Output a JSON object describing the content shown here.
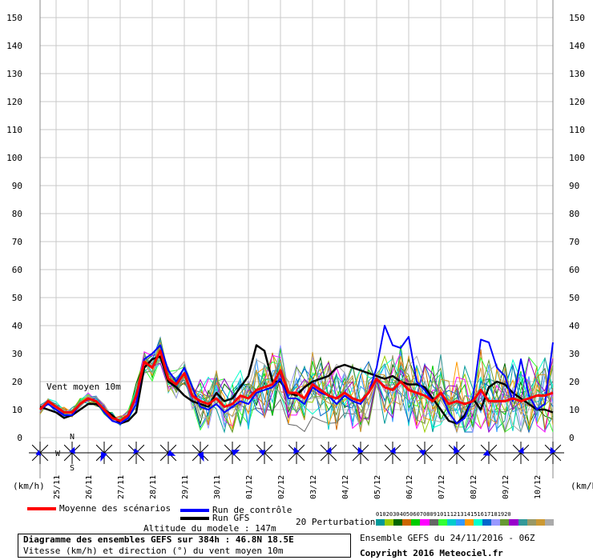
{
  "chart_data": {
    "type": "line",
    "y_ticks": [
      "150",
      "140",
      "130",
      "120",
      "110",
      "100",
      "90",
      "80",
      "70",
      "60",
      "50",
      "40",
      "30",
      "20",
      "10",
      "0"
    ],
    "ylim": [
      0,
      150
    ],
    "unit_left": "(km/h)",
    "unit_right": "(km/h)",
    "x_dates": [
      "25/11",
      "26/11",
      "27/11",
      "28/11",
      "29/11",
      "30/11",
      "01/12",
      "02/12",
      "03/12",
      "04/12",
      "05/12",
      "06/12",
      "07/12",
      "08/12",
      "09/12",
      "10/12"
    ],
    "x_axis_note": "Values sampled every 6h from 24/11 12Z (index 0) to 10/12 (index 64)",
    "series_label_inline": "Vent moyen 10m",
    "mean": {
      "name": "Moyenne des scénarios",
      "color": "#ff0000",
      "values": [
        10,
        13,
        11,
        9,
        9,
        12,
        14,
        13,
        10,
        7,
        6,
        8,
        15,
        27,
        25,
        31,
        21,
        19,
        23,
        15,
        13,
        12,
        14,
        11,
        12,
        15,
        14,
        17,
        18,
        19,
        24,
        16,
        16,
        14,
        19,
        17,
        15,
        14,
        16,
        14,
        13,
        16,
        21,
        18,
        17,
        20,
        17,
        16,
        15,
        13,
        16,
        12,
        13,
        12,
        13,
        17,
        13,
        13,
        13,
        14,
        13,
        14,
        15,
        15,
        16
      ]
    },
    "control": {
      "name": "Run de contrôle",
      "color": "#0000ff",
      "values": [
        10,
        12,
        10,
        8,
        8,
        12,
        14,
        13,
        9,
        6,
        5,
        7,
        12,
        28,
        30,
        33,
        24,
        20,
        25,
        18,
        11,
        10,
        12,
        9,
        11,
        13,
        12,
        16,
        17,
        18,
        21,
        14,
        14,
        12,
        18,
        16,
        15,
        12,
        15,
        13,
        12,
        16,
        25,
        40,
        33,
        32,
        36,
        20,
        17,
        13,
        16,
        9,
        5,
        7,
        14,
        35,
        34,
        25,
        22,
        13,
        28,
        15,
        10,
        12,
        34
      ]
    },
    "gfs": {
      "name": "Run GFS",
      "color": "#000000",
      "values": [
        11,
        10,
        9,
        7,
        8,
        10,
        12,
        12,
        10,
        8,
        5,
        6,
        9,
        25,
        28,
        29,
        20,
        18,
        15,
        13,
        12,
        11,
        16,
        13,
        14,
        18,
        22,
        33,
        31,
        20,
        20,
        16,
        15,
        18,
        20,
        21,
        22,
        25,
        26,
        25,
        24,
        23,
        22,
        21,
        22,
        20,
        19,
        19,
        18,
        14,
        10,
        6,
        5,
        8,
        14,
        10,
        18,
        20,
        19,
        16,
        14,
        12,
        10,
        10,
        9
      ]
    },
    "perturbations": {
      "name": "20 Perturbations",
      "labels": [
        "01",
        "02",
        "03",
        "04",
        "05",
        "06",
        "07",
        "08",
        "09",
        "10",
        "11",
        "12",
        "13",
        "14",
        "15",
        "16",
        "17",
        "18",
        "19",
        "20"
      ],
      "colors": [
        "#009999",
        "#99cc00",
        "#006600",
        "#cc6600",
        "#00cc00",
        "#ff00ff",
        "#666666",
        "#33ff33",
        "#00cccc",
        "#3399ff",
        "#ff9900",
        "#00ffcc",
        "#0066cc",
        "#9999ff",
        "#669933",
        "#9900cc",
        "#339999",
        "#999966",
        "#cc9933",
        "#aaaaaa"
      ]
    },
    "wind_direction_label": {
      "n": "N",
      "w": "W",
      "s": "S",
      "e": "E"
    },
    "legend": {
      "mean": "Moyenne des scénarios",
      "control": "Run de contrôle",
      "gfs": "Run GFS",
      "perturbations": "20 Perturbations",
      "altitude": "Altitude du modele : 147m"
    }
  },
  "info": {
    "title": "Diagramme des ensembles GEFS sur 384h : 46.8N 18.5E",
    "subtitle": "Vitesse (km/h) et direction (°) du vent moyen 10m",
    "run": "Ensemble GEFS du 24/11/2016 - 06Z",
    "copyright": "Copyright 2016 Meteociel.fr"
  }
}
